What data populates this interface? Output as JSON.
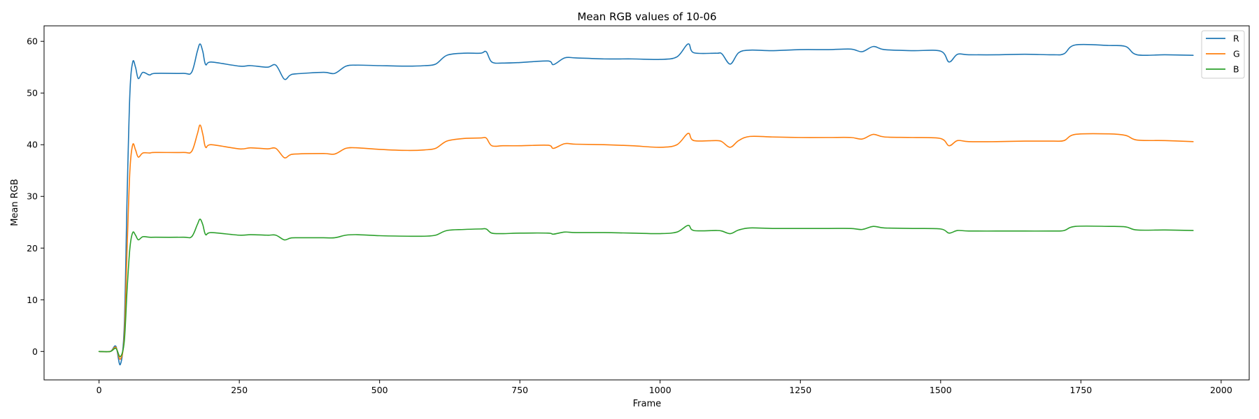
{
  "chart_data": {
    "type": "line",
    "title": "Mean RGB values of 10-06",
    "xlabel": "Frame",
    "ylabel": "Mean RGB",
    "xlim": [
      -98,
      2050
    ],
    "ylim": [
      -5.5,
      63
    ],
    "xticks": [
      0,
      250,
      500,
      750,
      1000,
      1250,
      1500,
      1750,
      2000
    ],
    "yticks": [
      0,
      10,
      20,
      30,
      40,
      50,
      60
    ],
    "grid": false,
    "legend_position": "top-right",
    "series": [
      {
        "name": "R",
        "color": "#1f77b4",
        "points": [
          [
            0,
            0
          ],
          [
            20,
            0
          ],
          [
            30,
            1
          ],
          [
            38,
            -2.5
          ],
          [
            45,
            5
          ],
          [
            50,
            30
          ],
          [
            55,
            50
          ],
          [
            60,
            56
          ],
          [
            65,
            55
          ],
          [
            70,
            52.8
          ],
          [
            78,
            54
          ],
          [
            90,
            53.5
          ],
          [
            100,
            53.8
          ],
          [
            150,
            53.8
          ],
          [
            165,
            54
          ],
          [
            175,
            58
          ],
          [
            180,
            59.5
          ],
          [
            185,
            58
          ],
          [
            190,
            55.5
          ],
          [
            200,
            56
          ],
          [
            250,
            55.2
          ],
          [
            270,
            55.3
          ],
          [
            300,
            55
          ],
          [
            315,
            55.4
          ],
          [
            330,
            52.7
          ],
          [
            340,
            53.4
          ],
          [
            350,
            53.7
          ],
          [
            400,
            54
          ],
          [
            420,
            53.8
          ],
          [
            440,
            55.2
          ],
          [
            460,
            55.4
          ],
          [
            500,
            55.3
          ],
          [
            550,
            55.2
          ],
          [
            580,
            55.3
          ],
          [
            600,
            55.6
          ],
          [
            620,
            57.3
          ],
          [
            650,
            57.7
          ],
          [
            680,
            57.7
          ],
          [
            690,
            58
          ],
          [
            700,
            56
          ],
          [
            720,
            55.8
          ],
          [
            750,
            55.9
          ],
          [
            800,
            56.2
          ],
          [
            810,
            55.5
          ],
          [
            830,
            56.8
          ],
          [
            850,
            56.8
          ],
          [
            900,
            56.6
          ],
          [
            950,
            56.6
          ],
          [
            1000,
            56.5
          ],
          [
            1030,
            57
          ],
          [
            1050,
            59.5
          ],
          [
            1060,
            57.8
          ],
          [
            1100,
            57.7
          ],
          [
            1110,
            57.6
          ],
          [
            1125,
            55.6
          ],
          [
            1140,
            57.8
          ],
          [
            1160,
            58.3
          ],
          [
            1200,
            58.2
          ],
          [
            1250,
            58.4
          ],
          [
            1300,
            58.4
          ],
          [
            1340,
            58.5
          ],
          [
            1360,
            58
          ],
          [
            1380,
            59
          ],
          [
            1400,
            58.4
          ],
          [
            1450,
            58.2
          ],
          [
            1500,
            58.1
          ],
          [
            1515,
            56
          ],
          [
            1530,
            57.5
          ],
          [
            1550,
            57.4
          ],
          [
            1600,
            57.4
          ],
          [
            1650,
            57.5
          ],
          [
            1700,
            57.4
          ],
          [
            1720,
            57.6
          ],
          [
            1740,
            59.3
          ],
          [
            1800,
            59.2
          ],
          [
            1830,
            59
          ],
          [
            1850,
            57.4
          ],
          [
            1900,
            57.4
          ],
          [
            1950,
            57.3
          ]
        ]
      },
      {
        "name": "G",
        "color": "#ff7f0e",
        "points": [
          [
            0,
            0
          ],
          [
            20,
            0
          ],
          [
            30,
            0.8
          ],
          [
            38,
            -1.5
          ],
          [
            45,
            3
          ],
          [
            50,
            20
          ],
          [
            55,
            35
          ],
          [
            60,
            40
          ],
          [
            65,
            39
          ],
          [
            70,
            37.6
          ],
          [
            78,
            38.4
          ],
          [
            90,
            38.4
          ],
          [
            100,
            38.5
          ],
          [
            150,
            38.5
          ],
          [
            165,
            38.7
          ],
          [
            175,
            42
          ],
          [
            180,
            43.8
          ],
          [
            185,
            42
          ],
          [
            190,
            39.5
          ],
          [
            200,
            40
          ],
          [
            250,
            39.2
          ],
          [
            270,
            39.4
          ],
          [
            300,
            39.2
          ],
          [
            315,
            39.3
          ],
          [
            330,
            37.5
          ],
          [
            340,
            38
          ],
          [
            350,
            38.2
          ],
          [
            400,
            38.3
          ],
          [
            420,
            38.2
          ],
          [
            440,
            39.3
          ],
          [
            460,
            39.4
          ],
          [
            500,
            39.1
          ],
          [
            550,
            38.9
          ],
          [
            580,
            39
          ],
          [
            600,
            39.3
          ],
          [
            620,
            40.7
          ],
          [
            650,
            41.2
          ],
          [
            680,
            41.3
          ],
          [
            690,
            41.3
          ],
          [
            700,
            39.8
          ],
          [
            720,
            39.8
          ],
          [
            750,
            39.8
          ],
          [
            800,
            39.9
          ],
          [
            810,
            39.3
          ],
          [
            830,
            40.2
          ],
          [
            850,
            40.1
          ],
          [
            900,
            40
          ],
          [
            950,
            39.8
          ],
          [
            1000,
            39.5
          ],
          [
            1030,
            40
          ],
          [
            1050,
            42.2
          ],
          [
            1060,
            40.8
          ],
          [
            1100,
            40.8
          ],
          [
            1110,
            40.6
          ],
          [
            1125,
            39.5
          ],
          [
            1140,
            40.8
          ],
          [
            1160,
            41.6
          ],
          [
            1200,
            41.5
          ],
          [
            1250,
            41.4
          ],
          [
            1300,
            41.4
          ],
          [
            1340,
            41.4
          ],
          [
            1360,
            41.1
          ],
          [
            1380,
            42
          ],
          [
            1400,
            41.5
          ],
          [
            1450,
            41.4
          ],
          [
            1500,
            41.2
          ],
          [
            1515,
            39.8
          ],
          [
            1530,
            40.8
          ],
          [
            1550,
            40.6
          ],
          [
            1600,
            40.6
          ],
          [
            1650,
            40.7
          ],
          [
            1700,
            40.7
          ],
          [
            1720,
            40.8
          ],
          [
            1740,
            42
          ],
          [
            1800,
            42.1
          ],
          [
            1830,
            41.8
          ],
          [
            1850,
            40.9
          ],
          [
            1900,
            40.8
          ],
          [
            1950,
            40.6
          ]
        ]
      },
      {
        "name": "B",
        "color": "#2ca02c",
        "points": [
          [
            0,
            0
          ],
          [
            20,
            0
          ],
          [
            30,
            0.6
          ],
          [
            38,
            -1
          ],
          [
            45,
            2
          ],
          [
            50,
            12
          ],
          [
            55,
            20
          ],
          [
            60,
            23
          ],
          [
            65,
            22.5
          ],
          [
            70,
            21.6
          ],
          [
            78,
            22.2
          ],
          [
            90,
            22.1
          ],
          [
            100,
            22.1
          ],
          [
            150,
            22.1
          ],
          [
            165,
            22.2
          ],
          [
            175,
            24.5
          ],
          [
            180,
            25.6
          ],
          [
            185,
            24.5
          ],
          [
            190,
            22.6
          ],
          [
            200,
            23
          ],
          [
            250,
            22.5
          ],
          [
            270,
            22.6
          ],
          [
            300,
            22.5
          ],
          [
            315,
            22.5
          ],
          [
            330,
            21.6
          ],
          [
            340,
            21.9
          ],
          [
            350,
            22
          ],
          [
            400,
            22
          ],
          [
            420,
            22
          ],
          [
            440,
            22.5
          ],
          [
            460,
            22.6
          ],
          [
            500,
            22.4
          ],
          [
            550,
            22.3
          ],
          [
            580,
            22.3
          ],
          [
            600,
            22.5
          ],
          [
            620,
            23.4
          ],
          [
            650,
            23.6
          ],
          [
            680,
            23.7
          ],
          [
            690,
            23.7
          ],
          [
            700,
            22.9
          ],
          [
            720,
            22.8
          ],
          [
            750,
            22.9
          ],
          [
            800,
            22.9
          ],
          [
            810,
            22.7
          ],
          [
            830,
            23.1
          ],
          [
            850,
            23
          ],
          [
            900,
            23
          ],
          [
            950,
            22.9
          ],
          [
            1000,
            22.8
          ],
          [
            1030,
            23.1
          ],
          [
            1050,
            24.4
          ],
          [
            1060,
            23.4
          ],
          [
            1100,
            23.4
          ],
          [
            1110,
            23.3
          ],
          [
            1125,
            22.8
          ],
          [
            1140,
            23.5
          ],
          [
            1160,
            23.9
          ],
          [
            1200,
            23.8
          ],
          [
            1250,
            23.8
          ],
          [
            1300,
            23.8
          ],
          [
            1340,
            23.8
          ],
          [
            1360,
            23.6
          ],
          [
            1380,
            24.2
          ],
          [
            1400,
            23.9
          ],
          [
            1450,
            23.8
          ],
          [
            1500,
            23.7
          ],
          [
            1515,
            22.9
          ],
          [
            1530,
            23.4
          ],
          [
            1550,
            23.3
          ],
          [
            1600,
            23.3
          ],
          [
            1650,
            23.3
          ],
          [
            1700,
            23.3
          ],
          [
            1720,
            23.4
          ],
          [
            1740,
            24.2
          ],
          [
            1800,
            24.2
          ],
          [
            1830,
            24.1
          ],
          [
            1850,
            23.5
          ],
          [
            1900,
            23.5
          ],
          [
            1950,
            23.4
          ]
        ]
      }
    ]
  }
}
